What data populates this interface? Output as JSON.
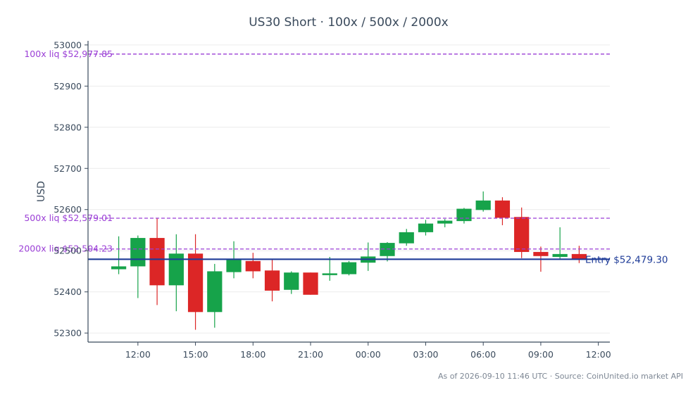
{
  "title": "US30 Short · 100x / 500x / 2000x",
  "ylabel": "USD",
  "footer": "As of 2026-09-10 11:46 UTC · Source: CoinUnited.io market API",
  "colors": {
    "up": "#16a34a",
    "down": "#dc2626",
    "liq": "#9b3fd6",
    "entry": "#1f3c98",
    "axis": "#3a4a5c",
    "grid": "#ececec"
  },
  "chart_data": {
    "type": "candlestick",
    "title": "US30 Short · 100x / 500x / 2000x",
    "ylabel": "USD",
    "ylim": [
      52278,
      53010
    ],
    "yticks": [
      52300,
      52400,
      52500,
      52600,
      52700,
      52800,
      52900,
      53000
    ],
    "xtick_labels": [
      "12:00",
      "15:00",
      "18:00",
      "21:00",
      "00:00",
      "03:00",
      "06:00",
      "09:00",
      "12:00"
    ],
    "xtick_hours": [
      0,
      3,
      6,
      9,
      12,
      15,
      18,
      21,
      24
    ],
    "xlim_hours": [
      -2.6,
      24.6
    ],
    "grid": true,
    "candles": [
      {
        "t": -1,
        "o": 52455,
        "h": 52535,
        "l": 52443,
        "c": 52462
      },
      {
        "t": 0,
        "o": 52462,
        "h": 52537,
        "l": 52385,
        "c": 52531
      },
      {
        "t": 1,
        "o": 52531,
        "h": 52580,
        "l": 52368,
        "c": 52416
      },
      {
        "t": 2,
        "o": 52416,
        "h": 52540,
        "l": 52353,
        "c": 52493
      },
      {
        "t": 3,
        "o": 52493,
        "h": 52540,
        "l": 52308,
        "c": 52351
      },
      {
        "t": 4,
        "o": 52351,
        "h": 52468,
        "l": 52313,
        "c": 52450
      },
      {
        "t": 5,
        "o": 52448,
        "h": 52523,
        "l": 52433,
        "c": 52478
      },
      {
        "t": 6,
        "o": 52475,
        "h": 52495,
        "l": 52433,
        "c": 52450
      },
      {
        "t": 7,
        "o": 52452,
        "h": 52478,
        "l": 52377,
        "c": 52403
      },
      {
        "t": 8,
        "o": 52405,
        "h": 52450,
        "l": 52395,
        "c": 52447
      },
      {
        "t": 9,
        "o": 52447,
        "h": 52447,
        "l": 52393,
        "c": 52393
      },
      {
        "t": 10,
        "o": 52441,
        "h": 52485,
        "l": 52427,
        "c": 52445
      },
      {
        "t": 11,
        "o": 52443,
        "h": 52475,
        "l": 52440,
        "c": 52472
      },
      {
        "t": 12,
        "o": 52471,
        "h": 52520,
        "l": 52451,
        "c": 52486
      },
      {
        "t": 13,
        "o": 52487,
        "h": 52521,
        "l": 52474,
        "c": 52519
      },
      {
        "t": 14,
        "o": 52518,
        "h": 52553,
        "l": 52512,
        "c": 52545
      },
      {
        "t": 15,
        "o": 52545,
        "h": 52575,
        "l": 52537,
        "c": 52566
      },
      {
        "t": 16,
        "o": 52566,
        "h": 52577,
        "l": 52557,
        "c": 52573
      },
      {
        "t": 17,
        "o": 52572,
        "h": 52604,
        "l": 52566,
        "c": 52602
      },
      {
        "t": 18,
        "o": 52599,
        "h": 52644,
        "l": 52595,
        "c": 52622
      },
      {
        "t": 19,
        "o": 52622,
        "h": 52630,
        "l": 52562,
        "c": 52580
      },
      {
        "t": 20,
        "o": 52582,
        "h": 52605,
        "l": 52482,
        "c": 52497
      },
      {
        "t": 21,
        "o": 52497,
        "h": 52510,
        "l": 52449,
        "c": 52487
      },
      {
        "t": 22,
        "o": 52485,
        "h": 52557,
        "l": 52478,
        "c": 52492
      },
      {
        "t": 23,
        "o": 52492,
        "h": 52512,
        "l": 52470,
        "c": 52480
      }
    ],
    "reference_lines": [
      {
        "label": "100x liq $52,977.85",
        "value": 52977.85,
        "style": "dashed",
        "color": "#9b3fd6"
      },
      {
        "label": "500x liq $52,579.01",
        "value": 52579.01,
        "style": "dashed",
        "color": "#9b3fd6"
      },
      {
        "label": "2000x liq $52,504.23",
        "value": 52504.23,
        "style": "dashed",
        "color": "#9b3fd6"
      },
      {
        "label": "Entry $52,479.30",
        "value": 52479.3,
        "style": "solid",
        "color": "#1f3c98"
      }
    ]
  }
}
